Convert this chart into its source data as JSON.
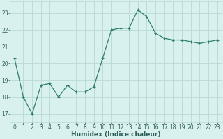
{
  "x": [
    0,
    1,
    2,
    3,
    4,
    5,
    6,
    7,
    8,
    9,
    10,
    11,
    12,
    13,
    14,
    15,
    16,
    17,
    18,
    19,
    20,
    21,
    22,
    23
  ],
  "y": [
    20.3,
    18.0,
    17.0,
    18.7,
    18.8,
    18.0,
    18.7,
    18.3,
    18.3,
    18.6,
    20.3,
    22.0,
    22.1,
    22.1,
    23.2,
    22.8,
    21.8,
    21.5,
    21.4,
    21.4,
    21.3,
    21.2,
    21.3,
    21.4
  ],
  "line_color": "#2E7D6E",
  "marker": "+",
  "marker_size": 3,
  "marker_lw": 0.8,
  "line_width": 0.9,
  "bg_color": "#D8F0EE",
  "grid_color": "#B8D8D4",
  "xlabel": "Humidex (Indice chaleur)",
  "ylim": [
    16.5,
    23.7
  ],
  "xlim": [
    -0.5,
    23.5
  ],
  "yticks": [
    17,
    18,
    19,
    20,
    21,
    22,
    23
  ],
  "xticks": [
    0,
    1,
    2,
    3,
    4,
    5,
    6,
    7,
    8,
    9,
    10,
    11,
    12,
    13,
    14,
    15,
    16,
    17,
    18,
    19,
    20,
    21,
    22,
    23
  ],
  "tick_fontsize": 5.5,
  "xlabel_fontsize": 6.5,
  "tick_color": "#2E5E5A"
}
